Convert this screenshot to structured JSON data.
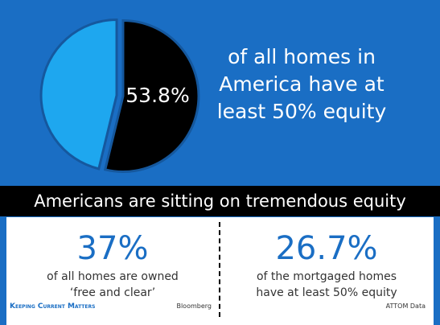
{
  "chart_data": {
    "type": "pie",
    "categories": [
      null,
      null
    ],
    "values": [
      53.8,
      46.2
    ],
    "value_labels": [
      "53.8%",
      null
    ],
    "colors": [
      "#000000",
      "#1ea7ef"
    ],
    "start_angle": -90,
    "annotation": [
      "of all homes in",
      "America have at",
      "least 50% equity"
    ]
  },
  "banner": {
    "title": "Americans are sitting on tremendous equity"
  },
  "stats": [
    {
      "value": "37%",
      "lines": [
        "of all homes are owned",
        "‘free and clear’"
      ],
      "source": "Bloomberg"
    },
    {
      "value": "26.7%",
      "lines": [
        "of the mortgaged homes",
        "have at least 50% equity"
      ],
      "source": "ATTOM Data"
    }
  ],
  "footer": {
    "logo": "Keeping Current Matters"
  }
}
